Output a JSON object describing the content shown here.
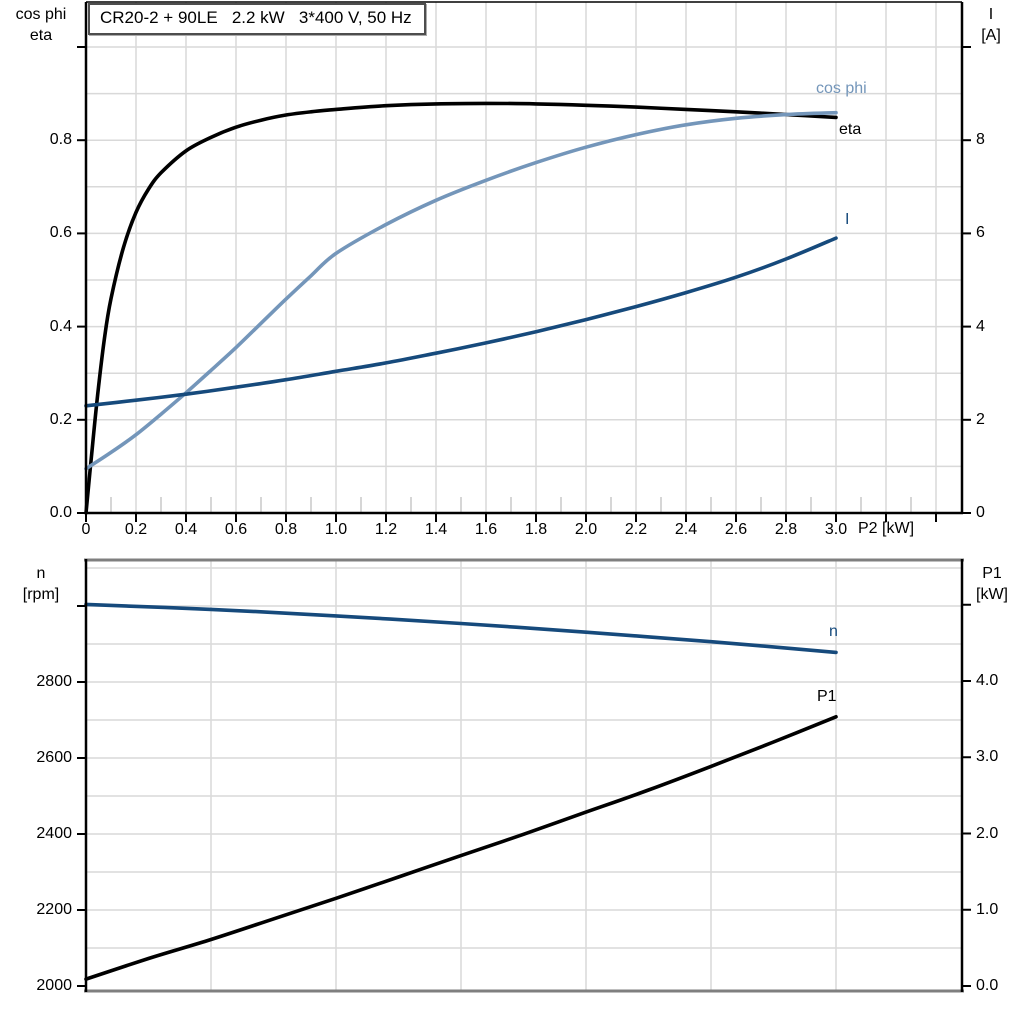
{
  "title_box": {
    "text": "CR20-2 + 90LE   2.2 kW   3*400 V, 50 Hz"
  },
  "colors": {
    "eta": "#000000",
    "cos_phi": "#7496ba",
    "current": "#164a7c",
    "n": "#164a7c",
    "p1": "#000000",
    "grid": "#d9d9d9",
    "minor_stub": "#c8c8c8",
    "axis": "#000000",
    "border_gray": "#7f7f7f"
  },
  "chart_data": [
    {
      "type": "line",
      "title": "CR20-2 + 90LE  2.2 kW  3*400 V, 50 Hz",
      "x": {
        "label": "P2 [kW]",
        "min": 0,
        "max": 3.5,
        "ticks": [
          {
            "v": 0,
            "label": "0"
          },
          {
            "v": 0.2,
            "label": "0.2"
          },
          {
            "v": 0.4,
            "label": "0.4"
          },
          {
            "v": 0.6,
            "label": "0.6"
          },
          {
            "v": 0.8,
            "label": "0.8"
          },
          {
            "v": 1.0,
            "label": "1.0"
          },
          {
            "v": 1.2,
            "label": "1.2"
          },
          {
            "v": 1.4,
            "label": "1.4"
          },
          {
            "v": 1.6,
            "label": "1.6"
          },
          {
            "v": 1.8,
            "label": "1.8"
          },
          {
            "v": 2.0,
            "label": "2.0"
          },
          {
            "v": 2.2,
            "label": "2.2"
          },
          {
            "v": 2.4,
            "label": "2.4"
          },
          {
            "v": 2.6,
            "label": "2.6"
          },
          {
            "v": 2.8,
            "label": "2.8"
          },
          {
            "v": 3.0,
            "label": "3.0"
          },
          {
            "v": 3.2,
            "label": ""
          },
          {
            "v": 3.4,
            "label": ""
          }
        ],
        "minor_step": 0.1,
        "grid_step": 0.2
      },
      "y_left": {
        "line1": "cos phi",
        "line2": "eta",
        "min": 0,
        "max": 1.1,
        "grid_step": 0.1,
        "ticks": [
          {
            "v": 0,
            "label": "0.0"
          },
          {
            "v": 0.2,
            "label": "0.2"
          },
          {
            "v": 0.4,
            "label": "0.4"
          },
          {
            "v": 0.6,
            "label": "0.6"
          },
          {
            "v": 0.8,
            "label": "0.8"
          },
          {
            "v": 1.0,
            "label": ""
          }
        ]
      },
      "y_right": {
        "line1": "I",
        "line2": "[A]",
        "min": 0,
        "max": 11,
        "ticks": [
          {
            "v": 0,
            "label": "0"
          },
          {
            "v": 2,
            "label": "2"
          },
          {
            "v": 4,
            "label": "4"
          },
          {
            "v": 6,
            "label": "6"
          },
          {
            "v": 8,
            "label": "8"
          },
          {
            "v": 10,
            "label": ""
          }
        ]
      },
      "series": [
        {
          "name": "eta",
          "label": "eta",
          "axis": "left",
          "color_key": "eta",
          "x": [
            0,
            0.025,
            0.05,
            0.075,
            0.1,
            0.15,
            0.2,
            0.25,
            0.3,
            0.4,
            0.5,
            0.6,
            0.7,
            0.8,
            0.9,
            1.0,
            1.2,
            1.4,
            1.6,
            1.8,
            2.0,
            2.2,
            2.4,
            2.6,
            2.8,
            3.0
          ],
          "y": [
            0,
            0.14,
            0.27,
            0.38,
            0.46,
            0.57,
            0.645,
            0.695,
            0.73,
            0.777,
            0.806,
            0.828,
            0.843,
            0.854,
            0.861,
            0.866,
            0.874,
            0.878,
            0.879,
            0.878,
            0.875,
            0.871,
            0.866,
            0.861,
            0.855,
            0.849
          ]
        },
        {
          "name": "cos phi",
          "label": "cos phi",
          "axis": "left",
          "color_key": "cos_phi",
          "x": [
            0,
            0.1,
            0.2,
            0.3,
            0.4,
            0.5,
            0.6,
            0.7,
            0.8,
            0.9,
            1.0,
            1.2,
            1.4,
            1.6,
            1.8,
            2.0,
            2.2,
            2.4,
            2.6,
            2.8,
            3.0
          ],
          "y": [
            0.095,
            0.13,
            0.168,
            0.212,
            0.258,
            0.306,
            0.355,
            0.407,
            0.459,
            0.509,
            0.557,
            0.619,
            0.671,
            0.714,
            0.752,
            0.785,
            0.812,
            0.833,
            0.847,
            0.855,
            0.859
          ]
        },
        {
          "name": "I",
          "label": "I",
          "axis": "right",
          "color_key": "current",
          "x": [
            0,
            0.2,
            0.4,
            0.6,
            0.8,
            1.0,
            1.2,
            1.4,
            1.6,
            1.8,
            2.0,
            2.2,
            2.4,
            2.6,
            2.8,
            3.0
          ],
          "y": [
            2.3,
            2.42,
            2.55,
            2.7,
            2.86,
            3.04,
            3.22,
            3.43,
            3.65,
            3.89,
            4.15,
            4.43,
            4.73,
            5.06,
            5.45,
            5.9
          ]
        }
      ]
    },
    {
      "type": "line",
      "x": {
        "min": 0,
        "max": 3.5,
        "grid_step": 0.5
      },
      "y_left": {
        "line1": "n",
        "line2": "[rpm]",
        "min": 2000,
        "max": 3130,
        "grid_step": 100,
        "ticks": [
          {
            "v": 2000,
            "label": "2000"
          },
          {
            "v": 2200,
            "label": "2200"
          },
          {
            "v": 2400,
            "label": "2400"
          },
          {
            "v": 2600,
            "label": "2600"
          },
          {
            "v": 2800,
            "label": "2800"
          },
          {
            "v": 3000,
            "label": ""
          }
        ]
      },
      "y_right": {
        "line1": "P1",
        "line2": "[kW]",
        "min": 0,
        "max": 5.6,
        "ticks": [
          {
            "v": 0,
            "label": "0.0"
          },
          {
            "v": 1,
            "label": "1.0"
          },
          {
            "v": 2,
            "label": "2.0"
          },
          {
            "v": 3,
            "label": "3.0"
          },
          {
            "v": 4,
            "label": "4.0"
          },
          {
            "v": 5,
            "label": ""
          }
        ]
      },
      "series": [
        {
          "name": "n",
          "label": "n",
          "axis": "left",
          "color_key": "n",
          "x": [
            0,
            0.5,
            1.0,
            1.5,
            2.0,
            2.5,
            3.0
          ],
          "y": [
            3004,
            2991,
            2974,
            2954,
            2931,
            2906,
            2878
          ]
        },
        {
          "name": "P1",
          "label": "P1",
          "axis": "right",
          "color_key": "p1",
          "x": [
            0,
            0.25,
            0.5,
            0.75,
            1.0,
            1.25,
            1.5,
            1.75,
            2.0,
            2.25,
            2.5,
            2.75,
            3.0
          ],
          "y": [
            0.09,
            0.36,
            0.61,
            0.88,
            1.15,
            1.43,
            1.71,
            1.99,
            2.28,
            2.57,
            2.88,
            3.2,
            3.53
          ]
        }
      ]
    }
  ]
}
